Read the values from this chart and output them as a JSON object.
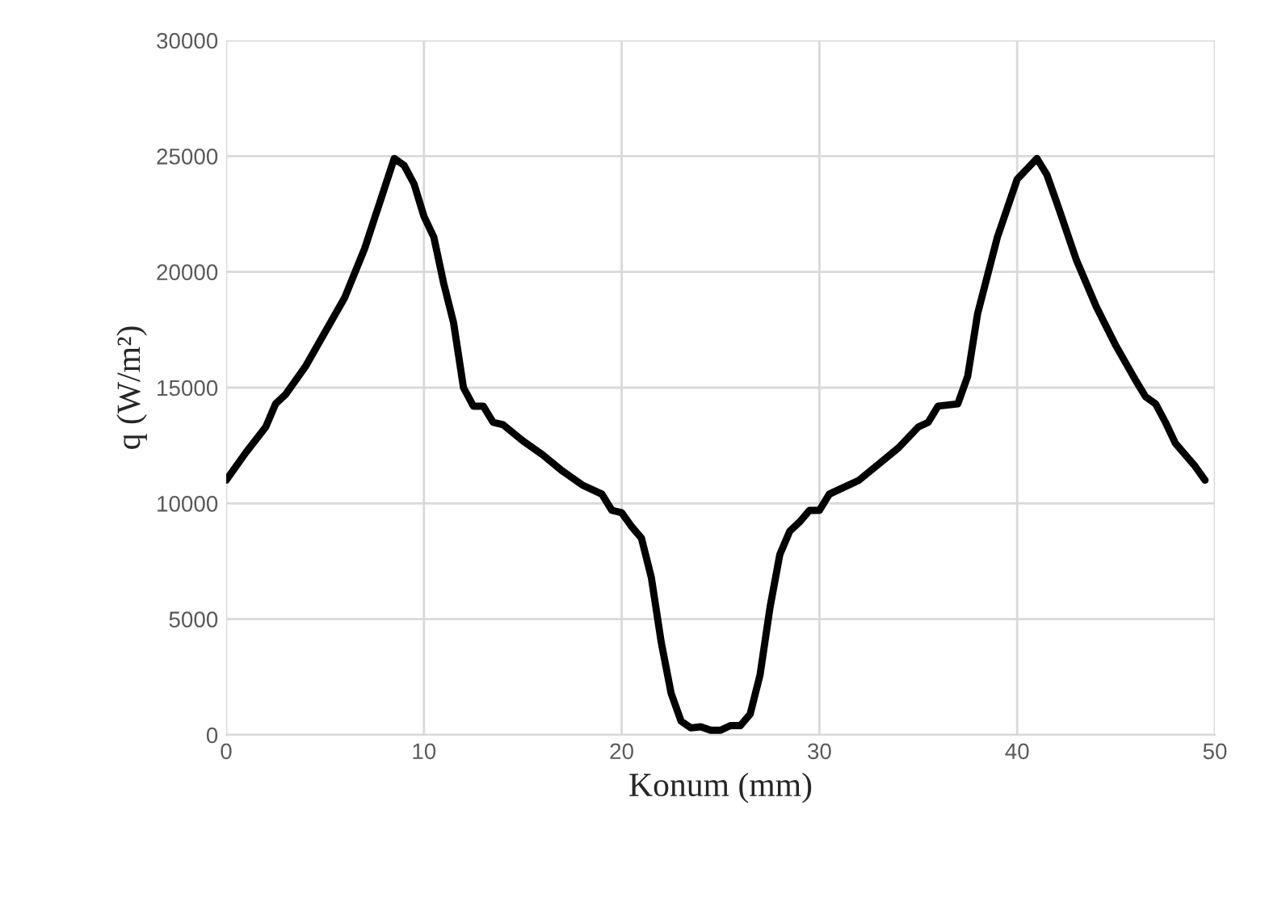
{
  "chart_data": {
    "type": "line",
    "xlabel": "Konum (mm)",
    "ylabel": "q (W/m²)",
    "xlim": [
      0,
      50
    ],
    "xticks": [
      0,
      10,
      20,
      30,
      40,
      50
    ],
    "ylim": [
      0,
      30000
    ],
    "yticks": [
      0,
      5000,
      10000,
      15000,
      20000,
      25000,
      30000
    ],
    "grid": true,
    "marker": "none",
    "line_style": "solid",
    "series": [
      {
        "color": "#000000",
        "x": [
          0,
          1,
          2,
          2.5,
          3,
          4,
          5,
          6,
          7,
          7.5,
          8.5,
          9,
          9.5,
          10,
          10.5,
          11,
          11.5,
          12,
          12.5,
          13,
          13.5,
          14,
          15,
          16,
          17,
          18,
          19,
          19.5,
          20,
          20.5,
          21,
          21.5,
          22,
          22.5,
          23,
          23.5,
          24,
          24.5,
          25,
          25.5,
          26,
          26.5,
          27,
          27.5,
          28,
          28.5,
          29,
          29.5,
          30,
          30.5,
          31,
          32,
          33,
          34,
          35,
          35.5,
          36,
          37,
          37.5,
          38,
          39,
          40,
          41,
          41.5,
          42,
          43,
          44,
          45,
          46,
          46.5,
          47,
          47.5,
          48,
          49,
          49.5
        ],
        "values": [
          11000,
          12200,
          13300,
          14300,
          14700,
          15900,
          17400,
          18900,
          21000,
          22300,
          24900,
          24600,
          23800,
          22400,
          21500,
          19500,
          17800,
          15000,
          14200,
          14200,
          13500,
          13400,
          12700,
          12100,
          11400,
          10800,
          10400,
          9700,
          9600,
          9000,
          8500,
          6800,
          4000,
          1800,
          600,
          300,
          350,
          200,
          200,
          400,
          400,
          900,
          2600,
          5500,
          7800,
          8800,
          9200,
          9700,
          9700,
          10400,
          10600,
          11000,
          11700,
          12400,
          13300,
          13500,
          14200,
          14300,
          15500,
          18200,
          21500,
          24000,
          24900,
          24200,
          23000,
          20500,
          18500,
          16800,
          15300,
          14600,
          14300,
          13500,
          12600,
          11600,
          11000
        ]
      }
    ]
  }
}
